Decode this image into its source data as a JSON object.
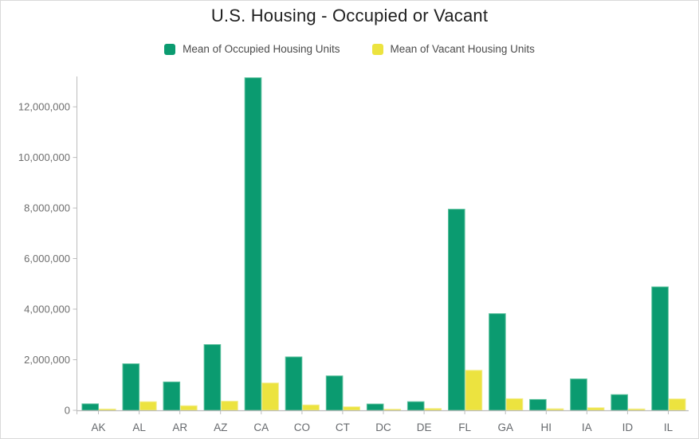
{
  "widget": {
    "title": "U.S. Housing - Occupied or Vacant"
  },
  "legend": {
    "items": [
      {
        "label": "Mean of Occupied Housing Units",
        "color": "#0b9b70"
      },
      {
        "label": "Mean of Vacant Housing Units",
        "color": "#ece33f"
      }
    ]
  },
  "chart_data": {
    "type": "bar",
    "title": "U.S. Housing - Occupied or Vacant",
    "categories": [
      "AK",
      "AL",
      "AR",
      "AZ",
      "CA",
      "CO",
      "CT",
      "DC",
      "DE",
      "FL",
      "GA",
      "HI",
      "IA",
      "ID",
      "IL"
    ],
    "series": [
      {
        "name": "Mean of Occupied Housing Units",
        "color": "#0b9b70",
        "border_color": "#5cc19d",
        "values": [
          255000,
          1840000,
          1120000,
          2600000,
          13150000,
          2110000,
          1360000,
          250000,
          340000,
          7950000,
          3820000,
          430000,
          1240000,
          620000,
          4880000
        ]
      },
      {
        "name": "Mean of Vacant Housing Units",
        "color": "#ece33f",
        "border_color": "#f3ec8a",
        "values": [
          50000,
          340000,
          180000,
          360000,
          1080000,
          210000,
          140000,
          45000,
          70000,
          1580000,
          460000,
          60000,
          100000,
          55000,
          450000
        ]
      }
    ],
    "xlabel": "",
    "ylabel": "",
    "ylim": [
      0,
      13200000
    ],
    "yticks": [
      0,
      2000000,
      4000000,
      6000000,
      8000000,
      10000000,
      12000000
    ],
    "ytick_labels": [
      "0",
      "2,000,000",
      "4,000,000",
      "6,000,000",
      "8,000,000",
      "10,000,000",
      "12,000,000"
    ],
    "grid": false,
    "legend_position": "top"
  },
  "style": {
    "axis_color": "#bdbdbd",
    "tick_label_color": "#6e6e6e",
    "category_label_color": "#66696d"
  }
}
